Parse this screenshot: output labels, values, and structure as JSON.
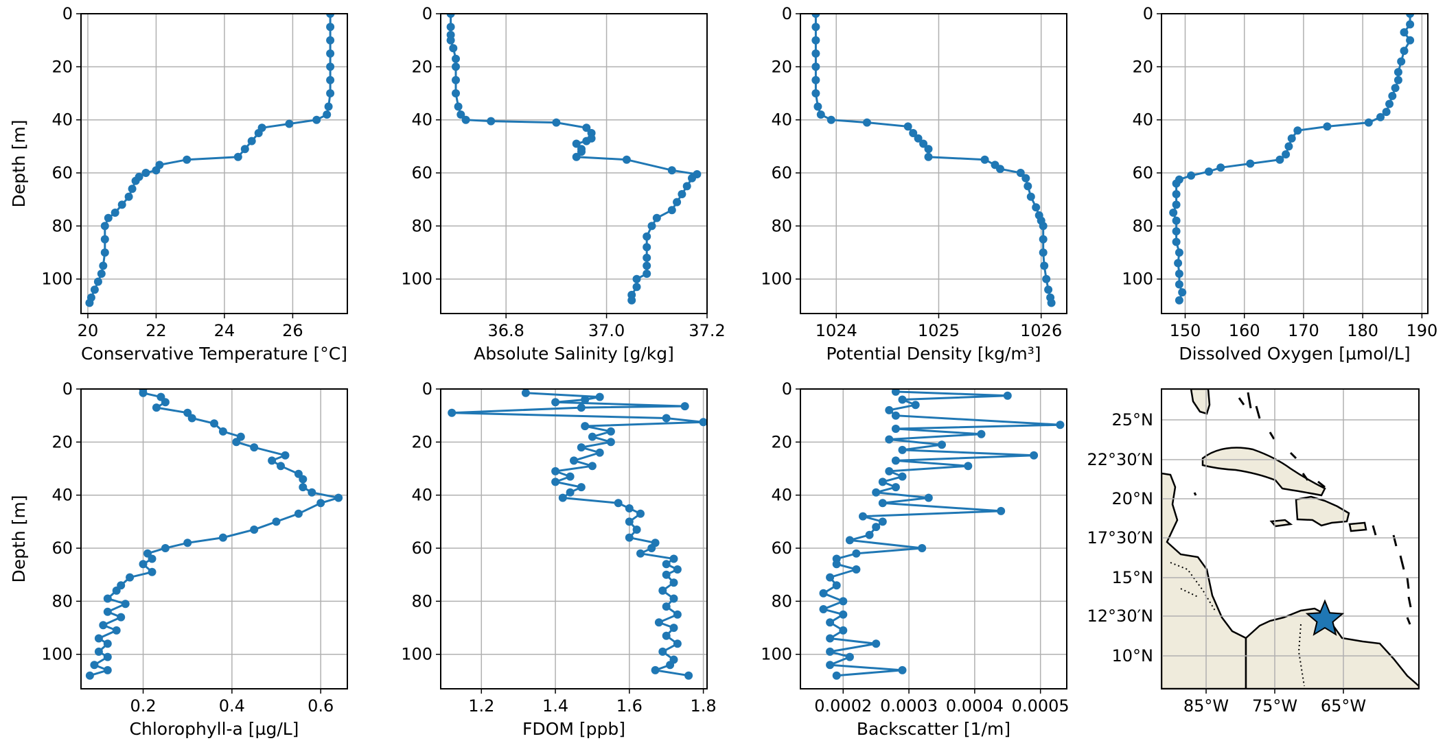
{
  "figure": {
    "line_color": "#1f77b4",
    "grid_color": "#b0b0b0",
    "star_color": "#1f77b4",
    "land_color": "#efebdc",
    "map": {
      "lon_tick_labels": [
        "85°W",
        "75°W",
        "65°W"
      ],
      "lat_tick_labels": [
        "25°N",
        "22°30′N",
        "20°N",
        "17°30′N",
        "15°N",
        "12°30′N",
        "10°N"
      ],
      "station_marker": "star-icon"
    }
  },
  "chart_data": [
    {
      "type": "line",
      "xlabel": "Conservative Temperature [°C]",
      "ylabel": "Depth [m]",
      "xlim": [
        19.8,
        27.6
      ],
      "ylim": [
        113,
        0
      ],
      "xticks": [
        20,
        22,
        24,
        26
      ],
      "yticks": [
        0,
        20,
        40,
        60,
        80,
        100
      ],
      "grid": true,
      "y_inverted": true,
      "marker": "circle",
      "points": [
        [
          27.1,
          0
        ],
        [
          27.1,
          5
        ],
        [
          27.1,
          10
        ],
        [
          27.1,
          15
        ],
        [
          27.1,
          20
        ],
        [
          27.1,
          25
        ],
        [
          27.1,
          30
        ],
        [
          27.05,
          35
        ],
        [
          27.0,
          38
        ],
        [
          26.7,
          40
        ],
        [
          25.9,
          41.5
        ],
        [
          25.1,
          43
        ],
        [
          25.0,
          45
        ],
        [
          24.8,
          48
        ],
        [
          24.6,
          51
        ],
        [
          24.4,
          54
        ],
        [
          22.9,
          55
        ],
        [
          22.1,
          57
        ],
        [
          22.0,
          59
        ],
        [
          21.7,
          60
        ],
        [
          21.5,
          61.5
        ],
        [
          21.4,
          63
        ],
        [
          21.3,
          66
        ],
        [
          21.2,
          69
        ],
        [
          21.0,
          72
        ],
        [
          20.8,
          75
        ],
        [
          20.6,
          77
        ],
        [
          20.5,
          80
        ],
        [
          20.5,
          85
        ],
        [
          20.5,
          90
        ],
        [
          20.45,
          95
        ],
        [
          20.4,
          98
        ],
        [
          20.3,
          101
        ],
        [
          20.2,
          104
        ],
        [
          20.1,
          107
        ],
        [
          20.05,
          109
        ]
      ]
    },
    {
      "type": "line",
      "xlabel": "Absolute Salinity [g/kg]",
      "ylabel": "",
      "xlim": [
        36.67,
        37.2
      ],
      "ylim": [
        113,
        0
      ],
      "xticks": [
        36.8,
        37.0,
        37.2
      ],
      "xtick_labels": [
        "36.8",
        "37.0",
        "37.2"
      ],
      "yticks": [
        0,
        20,
        40,
        60,
        80,
        100
      ],
      "grid": true,
      "y_inverted": true,
      "marker": "circle",
      "points": [
        [
          36.69,
          0
        ],
        [
          36.69,
          5
        ],
        [
          36.69,
          8
        ],
        [
          36.69,
          10
        ],
        [
          36.695,
          13
        ],
        [
          36.7,
          17
        ],
        [
          36.7,
          20
        ],
        [
          36.7,
          25
        ],
        [
          36.7,
          30
        ],
        [
          36.705,
          35
        ],
        [
          36.71,
          38
        ],
        [
          36.72,
          40
        ],
        [
          36.77,
          40.5
        ],
        [
          36.9,
          41
        ],
        [
          36.96,
          43
        ],
        [
          36.97,
          45
        ],
        [
          36.97,
          47
        ],
        [
          36.96,
          48
        ],
        [
          36.94,
          49
        ],
        [
          36.95,
          51
        ],
        [
          36.95,
          52
        ],
        [
          36.94,
          54
        ],
        [
          37.04,
          55
        ],
        [
          37.13,
          59
        ],
        [
          37.18,
          60.5
        ],
        [
          37.17,
          62
        ],
        [
          37.16,
          65
        ],
        [
          37.15,
          68
        ],
        [
          37.14,
          71
        ],
        [
          37.13,
          74
        ],
        [
          37.1,
          77
        ],
        [
          37.09,
          80
        ],
        [
          37.08,
          84
        ],
        [
          37.08,
          88
        ],
        [
          37.08,
          92
        ],
        [
          37.08,
          95
        ],
        [
          37.08,
          98
        ],
        [
          37.06,
          100
        ],
        [
          37.06,
          103
        ],
        [
          37.05,
          106
        ],
        [
          37.05,
          108
        ]
      ]
    },
    {
      "type": "line",
      "xlabel": "Potential Density [kg/m³]",
      "ylabel": "",
      "xlim": [
        1023.65,
        1026.25
      ],
      "ylim": [
        113,
        0
      ],
      "xticks": [
        1024,
        1025,
        1026
      ],
      "yticks": [
        0,
        20,
        40,
        60,
        80,
        100
      ],
      "grid": true,
      "y_inverted": true,
      "marker": "circle",
      "points": [
        [
          1023.8,
          0
        ],
        [
          1023.8,
          5
        ],
        [
          1023.8,
          10
        ],
        [
          1023.8,
          15
        ],
        [
          1023.8,
          20
        ],
        [
          1023.8,
          25
        ],
        [
          1023.8,
          30
        ],
        [
          1023.82,
          35
        ],
        [
          1023.85,
          38
        ],
        [
          1023.95,
          40
        ],
        [
          1024.3,
          41
        ],
        [
          1024.7,
          42.5
        ],
        [
          1024.75,
          45
        ],
        [
          1024.8,
          47
        ],
        [
          1024.85,
          49
        ],
        [
          1024.9,
          51
        ],
        [
          1024.9,
          54
        ],
        [
          1025.45,
          55
        ],
        [
          1025.55,
          57
        ],
        [
          1025.6,
          58.5
        ],
        [
          1025.8,
          60
        ],
        [
          1025.85,
          62
        ],
        [
          1025.87,
          65
        ],
        [
          1025.9,
          69
        ],
        [
          1025.95,
          73
        ],
        [
          1025.98,
          76
        ],
        [
          1026.0,
          78
        ],
        [
          1026.02,
          80
        ],
        [
          1026.02,
          85
        ],
        [
          1026.02,
          90
        ],
        [
          1026.03,
          95
        ],
        [
          1026.05,
          100
        ],
        [
          1026.07,
          104
        ],
        [
          1026.09,
          107
        ],
        [
          1026.1,
          109
        ]
      ]
    },
    {
      "type": "line",
      "xlabel": "Dissolved Oxygen [µmol/L]",
      "ylabel": "",
      "xlim": [
        146,
        191
      ],
      "ylim": [
        113,
        0
      ],
      "xticks": [
        150,
        160,
        170,
        180,
        190
      ],
      "yticks": [
        0,
        20,
        40,
        60,
        80,
        100
      ],
      "grid": true,
      "y_inverted": true,
      "marker": "circle",
      "points": [
        [
          188,
          0
        ],
        [
          188,
          4
        ],
        [
          187,
          7
        ],
        [
          188,
          10
        ],
        [
          187,
          14
        ],
        [
          186.5,
          18
        ],
        [
          186,
          22
        ],
        [
          186,
          25
        ],
        [
          185.5,
          28
        ],
        [
          185,
          31
        ],
        [
          184.5,
          34
        ],
        [
          184,
          37
        ],
        [
          183,
          39
        ],
        [
          181,
          41
        ],
        [
          174,
          42.5
        ],
        [
          169,
          44
        ],
        [
          168,
          47
        ],
        [
          167.5,
          50
        ],
        [
          167,
          53
        ],
        [
          166,
          55
        ],
        [
          161,
          56.5
        ],
        [
          156,
          58
        ],
        [
          154,
          59.5
        ],
        [
          151,
          61
        ],
        [
          149,
          62.5
        ],
        [
          148.5,
          64
        ],
        [
          148.5,
          68
        ],
        [
          148.5,
          72
        ],
        [
          148,
          75
        ],
        [
          148.5,
          78
        ],
        [
          148.5,
          82
        ],
        [
          148.5,
          86
        ],
        [
          149,
          90
        ],
        [
          148.8,
          94
        ],
        [
          149,
          98
        ],
        [
          149,
          102
        ],
        [
          149.5,
          105
        ],
        [
          149,
          108
        ]
      ]
    },
    {
      "type": "line",
      "xlabel": "Chlorophyll-a [µg/L]",
      "ylabel": "Depth [m]",
      "xlim": [
        0.06,
        0.66
      ],
      "ylim": [
        113,
        0
      ],
      "xticks": [
        0.2,
        0.4,
        0.6
      ],
      "xtick_labels": [
        "0.2",
        "0.4",
        "0.6"
      ],
      "yticks": [
        0,
        20,
        40,
        60,
        80,
        100
      ],
      "grid": true,
      "y_inverted": true,
      "marker": "circle",
      "points": [
        [
          0.2,
          0
        ],
        [
          0.2,
          1.5
        ],
        [
          0.24,
          3
        ],
        [
          0.25,
          5
        ],
        [
          0.23,
          7
        ],
        [
          0.3,
          9
        ],
        [
          0.31,
          11
        ],
        [
          0.36,
          13
        ],
        [
          0.38,
          16
        ],
        [
          0.42,
          18
        ],
        [
          0.41,
          20
        ],
        [
          0.45,
          22
        ],
        [
          0.52,
          25
        ],
        [
          0.49,
          27
        ],
        [
          0.51,
          29
        ],
        [
          0.55,
          32
        ],
        [
          0.56,
          34
        ],
        [
          0.56,
          37
        ],
        [
          0.58,
          39
        ],
        [
          0.64,
          41
        ],
        [
          0.6,
          43
        ],
        [
          0.55,
          47
        ],
        [
          0.5,
          50
        ],
        [
          0.45,
          53
        ],
        [
          0.38,
          56
        ],
        [
          0.3,
          58
        ],
        [
          0.25,
          60
        ],
        [
          0.21,
          62
        ],
        [
          0.22,
          64
        ],
        [
          0.2,
          66
        ],
        [
          0.22,
          69
        ],
        [
          0.17,
          71
        ],
        [
          0.15,
          74
        ],
        [
          0.14,
          76
        ],
        [
          0.12,
          79
        ],
        [
          0.16,
          81
        ],
        [
          0.12,
          84
        ],
        [
          0.15,
          86
        ],
        [
          0.11,
          89
        ],
        [
          0.14,
          91
        ],
        [
          0.1,
          94
        ],
        [
          0.12,
          96
        ],
        [
          0.1,
          99
        ],
        [
          0.12,
          101
        ],
        [
          0.09,
          104
        ],
        [
          0.12,
          106
        ],
        [
          0.08,
          108
        ]
      ]
    },
    {
      "type": "line",
      "xlabel": "FDOM [ppb]",
      "ylabel": "",
      "xlim": [
        1.09,
        1.81
      ],
      "ylim": [
        113,
        0
      ],
      "xticks": [
        1.2,
        1.4,
        1.6,
        1.8
      ],
      "xtick_labels": [
        "1.2",
        "1.4",
        "1.6",
        "1.8"
      ],
      "yticks": [
        0,
        20,
        40,
        60,
        80,
        100
      ],
      "grid": true,
      "y_inverted": true,
      "marker": "circle",
      "points": [
        [
          1.32,
          1.5
        ],
        [
          1.52,
          3
        ],
        [
          1.48,
          4
        ],
        [
          1.4,
          5
        ],
        [
          1.75,
          6.5
        ],
        [
          1.47,
          7
        ],
        [
          1.12,
          9
        ],
        [
          1.7,
          11
        ],
        [
          1.8,
          12.5
        ],
        [
          1.48,
          14
        ],
        [
          1.55,
          16
        ],
        [
          1.5,
          18
        ],
        [
          1.55,
          20
        ],
        [
          1.47,
          22
        ],
        [
          1.52,
          24
        ],
        [
          1.45,
          27
        ],
        [
          1.5,
          29
        ],
        [
          1.4,
          31
        ],
        [
          1.44,
          33
        ],
        [
          1.4,
          35
        ],
        [
          1.47,
          37
        ],
        [
          1.44,
          39
        ],
        [
          1.42,
          41
        ],
        [
          1.57,
          43
        ],
        [
          1.6,
          45
        ],
        [
          1.63,
          47
        ],
        [
          1.6,
          50
        ],
        [
          1.62,
          53
        ],
        [
          1.6,
          56
        ],
        [
          1.67,
          58
        ],
        [
          1.66,
          60
        ],
        [
          1.63,
          62
        ],
        [
          1.72,
          64
        ],
        [
          1.7,
          66
        ],
        [
          1.73,
          68
        ],
        [
          1.7,
          70
        ],
        [
          1.72,
          73
        ],
        [
          1.69,
          76
        ],
        [
          1.72,
          79
        ],
        [
          1.7,
          82
        ],
        [
          1.73,
          85
        ],
        [
          1.68,
          88
        ],
        [
          1.72,
          90
        ],
        [
          1.7,
          93
        ],
        [
          1.73,
          96
        ],
        [
          1.69,
          99
        ],
        [
          1.72,
          102
        ],
        [
          1.71,
          104
        ],
        [
          1.67,
          106
        ],
        [
          1.76,
          108
        ]
      ]
    },
    {
      "type": "line",
      "xlabel": "Backscatter [1/m]",
      "ylabel": "",
      "xlim": [
        0.000135,
        0.00054
      ],
      "ylim": [
        113,
        0
      ],
      "xticks": [
        0.0002,
        0.0003,
        0.0004,
        0.0005
      ],
      "xtick_labels": [
        "0.0002",
        "0.0003",
        "0.0004",
        "0.0005"
      ],
      "yticks": [
        0,
        20,
        40,
        60,
        80,
        100
      ],
      "grid": true,
      "y_inverted": true,
      "marker": "circle",
      "points": [
        [
          0.00028,
          1
        ],
        [
          0.00045,
          2.5
        ],
        [
          0.00029,
          4
        ],
        [
          0.00031,
          6
        ],
        [
          0.00027,
          8
        ],
        [
          0.00028,
          10
        ],
        [
          0.00053,
          13.5
        ],
        [
          0.00028,
          15
        ],
        [
          0.00041,
          17
        ],
        [
          0.00027,
          19
        ],
        [
          0.00035,
          21
        ],
        [
          0.00029,
          23
        ],
        [
          0.00049,
          25
        ],
        [
          0.00028,
          27
        ],
        [
          0.00039,
          29
        ],
        [
          0.00027,
          31
        ],
        [
          0.00029,
          33
        ],
        [
          0.00026,
          35
        ],
        [
          0.00028,
          37
        ],
        [
          0.00025,
          39
        ],
        [
          0.00033,
          41
        ],
        [
          0.00026,
          43
        ],
        [
          0.00044,
          46
        ],
        [
          0.00023,
          48
        ],
        [
          0.00026,
          50
        ],
        [
          0.00025,
          52
        ],
        [
          0.00024,
          55
        ],
        [
          0.00021,
          57
        ],
        [
          0.00032,
          60
        ],
        [
          0.00022,
          62
        ],
        [
          0.00019,
          64
        ],
        [
          0.00019,
          66
        ],
        [
          0.00022,
          68
        ],
        [
          0.00018,
          71
        ],
        [
          0.00019,
          74
        ],
        [
          0.00017,
          77
        ],
        [
          0.0002,
          80
        ],
        [
          0.00017,
          83
        ],
        [
          0.0002,
          85
        ],
        [
          0.00018,
          88
        ],
        [
          0.0002,
          91
        ],
        [
          0.00018,
          94
        ],
        [
          0.00025,
          96
        ],
        [
          0.00018,
          99
        ],
        [
          0.00021,
          101
        ],
        [
          0.00018,
          104
        ],
        [
          0.00029,
          106
        ],
        [
          0.00019,
          108
        ]
      ]
    }
  ]
}
